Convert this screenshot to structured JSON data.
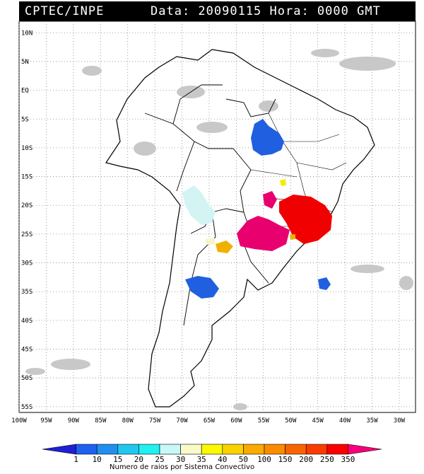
{
  "header": {
    "source": "CPTEC/INPE",
    "info": "Data: 20090115 Hora: 0000 GMT"
  },
  "map": {
    "lat_labels": [
      "10N",
      "5N",
      "EQ",
      "5S",
      "10S",
      "15S",
      "20S",
      "25S",
      "30S",
      "35S",
      "40S",
      "45S",
      "50S",
      "55S"
    ],
    "lat_values": [
      10,
      5,
      0,
      -5,
      -10,
      -15,
      -20,
      -25,
      -30,
      -35,
      -40,
      -45,
      -50,
      -55
    ],
    "lon_labels": [
      "100W",
      "95W",
      "90W",
      "85W",
      "80W",
      "75W",
      "70W",
      "65W",
      "60W",
      "55W",
      "50W",
      "45W",
      "40W",
      "35W",
      "30W"
    ],
    "lon_values": [
      -100,
      -95,
      -90,
      -85,
      -80,
      -75,
      -70,
      -65,
      -60,
      -55,
      -50,
      -45,
      -40,
      -35,
      -30
    ],
    "lat_range": [
      -56,
      12
    ],
    "lon_range": [
      -100,
      -27
    ]
  },
  "legend": {
    "colors": [
      "#1f1fd4",
      "#1f60f0",
      "#2090f0",
      "#20c8f0",
      "#20f0f0",
      "#c8f8f8",
      "#fafac8",
      "#fafa00",
      "#fad200",
      "#faaa00",
      "#fa8c00",
      "#fa6400",
      "#fa3c00",
      "#fa0000",
      "#fa0078"
    ],
    "labels": [
      "1",
      "10",
      "15",
      "20",
      "25",
      "30",
      "35",
      "40",
      "50",
      "100",
      "150",
      "200",
      "250",
      "350"
    ],
    "title": "Numero de raios por Sistema Convectivo"
  },
  "systems": [
    {
      "name": "storm-amazon",
      "color": "#2060e0",
      "lon": -54,
      "lat": -9
    },
    {
      "name": "storm-bolivia",
      "color": "#d8f4f4",
      "lon": -65,
      "lat": -20
    },
    {
      "name": "storm-paraguay",
      "color": "#e8006e",
      "lon": -54,
      "lat": -25
    },
    {
      "name": "storm-southeast",
      "color": "#f00000",
      "lon": -44,
      "lat": -22
    },
    {
      "name": "storm-argentina",
      "color": "#f0b000",
      "lon": -60,
      "lat": -27
    },
    {
      "name": "storm-pampa",
      "color": "#2060e0",
      "lon": -65,
      "lat": -33
    },
    {
      "name": "storm-atlantic",
      "color": "#2060e0",
      "lon": -42,
      "lat": -33
    }
  ]
}
